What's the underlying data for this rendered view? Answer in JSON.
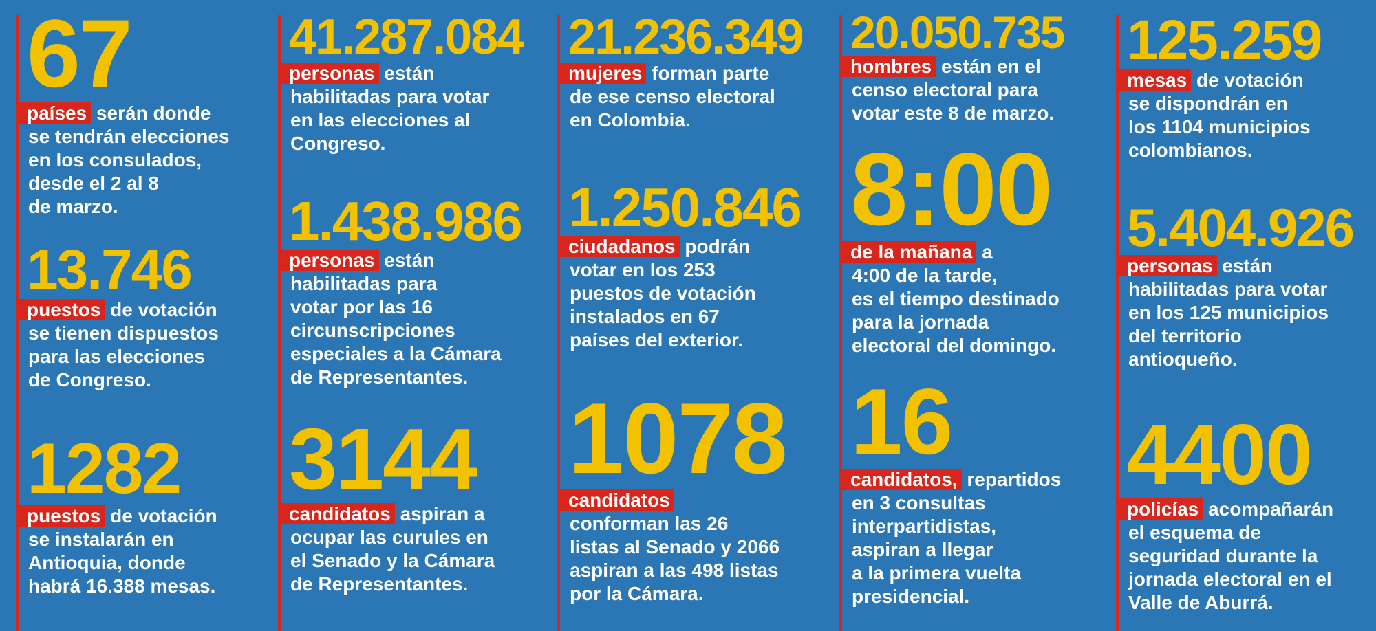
{
  "colors": {
    "background": "#2b76b5",
    "number": "#f2c200",
    "highlight": "#d9261c",
    "text": "#ffffff"
  },
  "columns": [
    {
      "blocks": [
        {
          "number": "67",
          "label": "países",
          "first": " serán donde",
          "lines": [
            "se tendrán elecciones",
            "en los consulados,",
            "desde el 2 al 8",
            "de marzo."
          ]
        },
        {
          "number": "13.746",
          "label": "puestos",
          "first": " de votación",
          "lines": [
            "se tienen dispuestos",
            "para las elecciones",
            "de Congreso."
          ]
        },
        {
          "number": "1282",
          "label": "puestos",
          "first": " de votación",
          "lines": [
            "se instalarán en",
            "Antioquia, donde",
            "habrá 16.388 mesas."
          ]
        }
      ]
    },
    {
      "blocks": [
        {
          "number": "41.287.084",
          "label": "personas",
          "first": " están",
          "lines": [
            "habilitadas para votar",
            "en las elecciones al",
            "Congreso."
          ]
        },
        {
          "number": "1.438.986",
          "label": "personas",
          "first": " están",
          "lines": [
            "habilitadas para",
            "votar por las 16",
            "circunscripciones",
            "especiales a la Cámara",
            "de Representantes."
          ]
        },
        {
          "number": "3144",
          "label": "candidatos",
          "first": " aspiran a",
          "lines": [
            "ocupar las curules en",
            "el Senado y la Cámara",
            "de Representantes."
          ]
        }
      ]
    },
    {
      "blocks": [
        {
          "number": "21.236.349",
          "label": "mujeres",
          "first": " forman parte",
          "lines": [
            "de ese censo electoral",
            "en Colombia."
          ]
        },
        {
          "number": "1.250.846",
          "label": "ciudadanos",
          "first": " podrán",
          "lines": [
            "votar en los 253",
            "puestos de votación",
            "instalados en 67",
            "países del exterior."
          ]
        },
        {
          "number": "1078",
          "label": "candidatos",
          "first": "",
          "lines": [
            "conforman las 26",
            "listas al Senado y 2066",
            "aspiran a las 498 listas",
            "por la Cámara."
          ]
        }
      ]
    },
    {
      "blocks": [
        {
          "number": "20.050.735",
          "label": "hombres",
          "first": " están en el",
          "lines": [
            "censo electoral para",
            "votar este 8 de marzo."
          ]
        },
        {
          "number": "8:00",
          "label": "de la mañana",
          "first": " a",
          "lines": [
            "4:00 de la tarde,",
            "es el tiempo destinado",
            "para la jornada",
            "electoral del domingo."
          ]
        },
        {
          "number": "16",
          "label": "candidatos,",
          "first": " repartidos",
          "lines": [
            "en 3 consultas",
            "interpartidistas,",
            "aspiran a llegar",
            "a la primera vuelta",
            "presidencial."
          ]
        }
      ]
    },
    {
      "blocks": [
        {
          "number": "125.259",
          "label": "mesas",
          "first": " de votación",
          "lines": [
            "se dispondrán en",
            "los 1104 municipios",
            "colombianos."
          ]
        },
        {
          "number": "5.404.926",
          "label": "personas",
          "first": " están",
          "lines": [
            "habilitadas para votar",
            "en los 125 municipios",
            "del territorio",
            "antioqueño."
          ]
        },
        {
          "number": "4400",
          "label": "policías",
          "first": " acompañarán",
          "lines": [
            "el esquema de",
            "seguridad durante la",
            "jornada electoral en el",
            "Valle de Aburrá."
          ]
        }
      ]
    }
  ]
}
